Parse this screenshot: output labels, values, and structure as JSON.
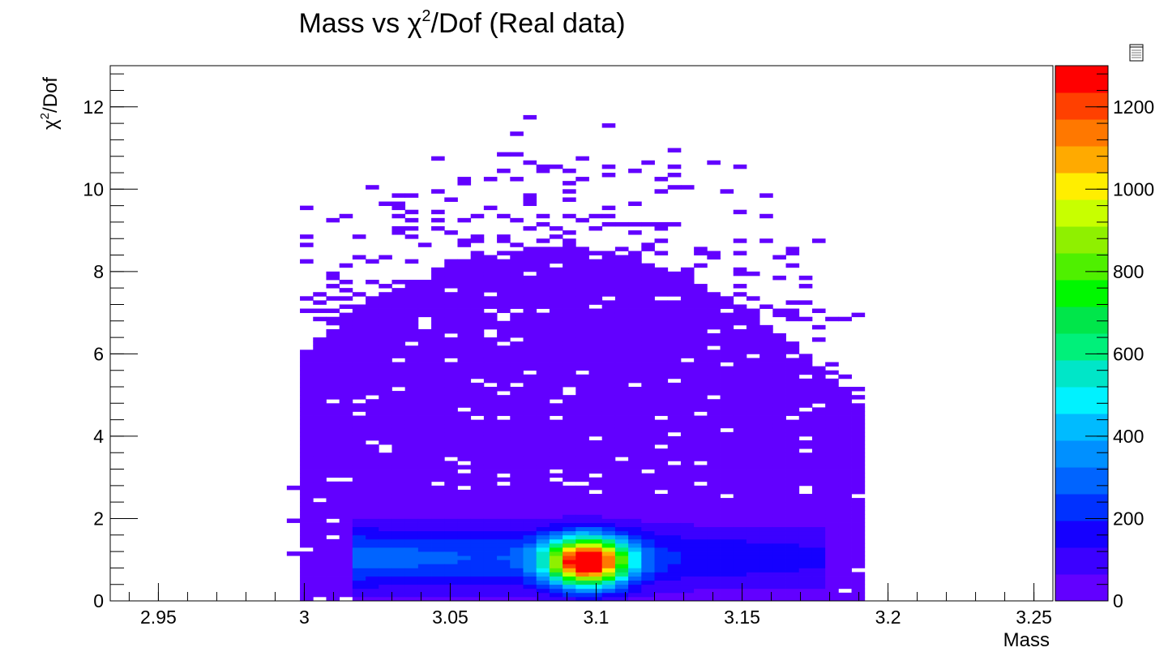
{
  "chart_data": {
    "type": "heatmap",
    "title": "Mass vs χ²/Dof (Real data)",
    "title_parts": {
      "before": "Mass vs ",
      "chi": "χ",
      "sup": "2",
      "after": "/Dof (Real data)"
    },
    "xlabel": "Mass",
    "ylabel": "χ²/Dof",
    "ylabel_parts": {
      "chi": "χ",
      "sup": "2",
      "after": "/Dof"
    },
    "xlim": [
      2.9335,
      3.2565
    ],
    "ylim": [
      0,
      13
    ],
    "x_ticks": [
      "2.95",
      "3",
      "3.05",
      "3.1",
      "3.15",
      "3.2",
      "3.25"
    ],
    "y_ticks": [
      "0",
      "2",
      "4",
      "6",
      "8",
      "10",
      "12"
    ],
    "z_range": [
      0,
      1300
    ],
    "z_ticks": [
      "0",
      "200",
      "400",
      "600",
      "800",
      "1000",
      "1200"
    ],
    "palette": [
      "#6200ff",
      "#3b00ff",
      "#1500ff",
      "#0031ff",
      "#0064ff",
      "#0090ff",
      "#00bbff",
      "#00f2ff",
      "#00e6c8",
      "#00f07a",
      "#00e64a",
      "#00f800",
      "#4ff000",
      "#8ff000",
      "#c8ff00",
      "#ffee00",
      "#ffaa00",
      "#ff7800",
      "#ff4000",
      "#ff0000"
    ],
    "peak": {
      "mass": 3.097,
      "chi2dof": 0.95,
      "count": 1270
    },
    "legend": "right-side color scale",
    "grid": false
  }
}
